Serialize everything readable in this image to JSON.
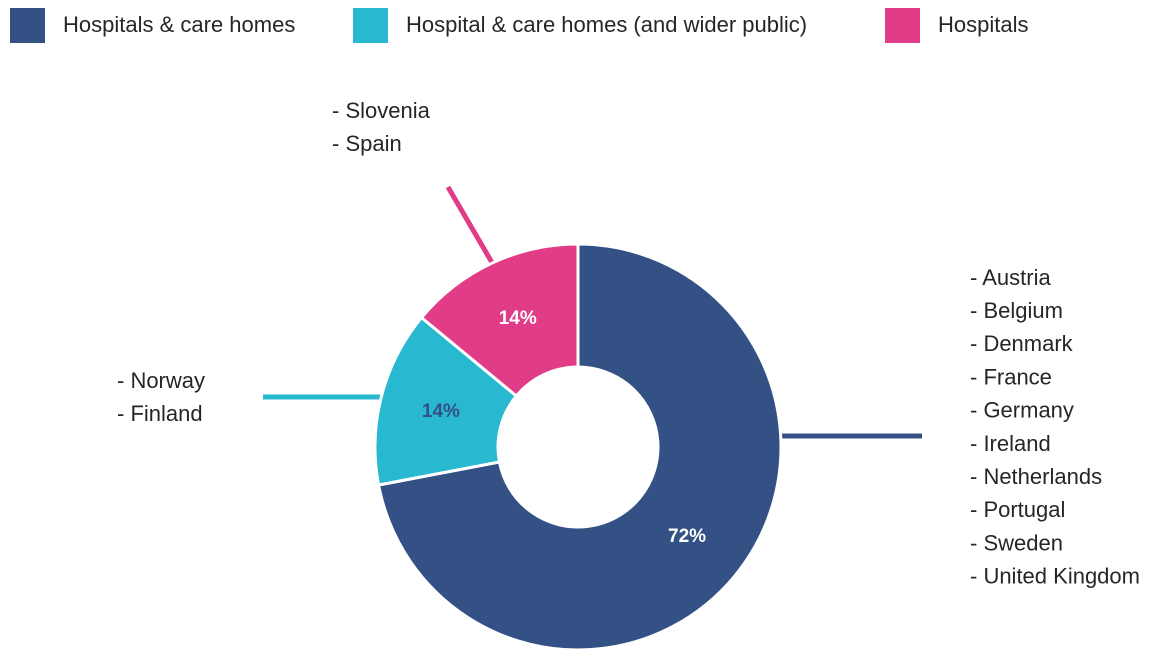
{
  "chart_data": {
    "type": "donut",
    "series": [
      {
        "name": "Hospitals & care homes",
        "color": "#335185",
        "label_color": "#ffffff",
        "values": [
          72
        ],
        "value_labels": [
          "72%"
        ],
        "members": [
          "- Austria",
          "- Belgium",
          "- Denmark",
          "- France",
          "- Germany",
          "- Ireland",
          "- Netherlands",
          "- Portugal",
          "- Sweden",
          "- United Kingdom"
        ]
      },
      {
        "name": "Hospital & care homes (and wider public)",
        "color": "#28b9d0",
        "label_color": "#335185",
        "values": [
          14
        ],
        "value_labels": [
          "14%"
        ],
        "members": [
          "- Norway",
          "- Finland"
        ]
      },
      {
        "name": "Hospitals",
        "color": "#e03c87",
        "label_color": "#ffffff",
        "values": [
          14
        ],
        "value_labels": [
          "14%"
        ],
        "members": [
          "- Slovenia",
          "- Spain"
        ]
      }
    ],
    "legend": "top"
  }
}
